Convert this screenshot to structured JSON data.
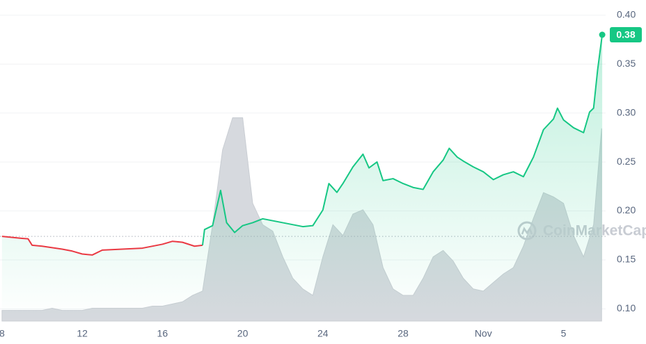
{
  "chart_data": {
    "type": "line",
    "watermark": "CoinMarketCap",
    "xlim": [
      -0.1,
      30.1
    ],
    "ylim": [
      0.0875,
      0.4155
    ],
    "xticks": [
      {
        "value": 0,
        "label": "8"
      },
      {
        "value": 4,
        "label": "12"
      },
      {
        "value": 8,
        "label": "16"
      },
      {
        "value": 12,
        "label": "20"
      },
      {
        "value": 16,
        "label": "24"
      },
      {
        "value": 20,
        "label": "28"
      },
      {
        "value": 24,
        "label": "Nov"
      },
      {
        "value": 28,
        "label": "5"
      }
    ],
    "yticks": [
      {
        "value": 0.4,
        "label": "0.40"
      },
      0.35,
      {
        "value": 0.3,
        "label": "0.30"
      },
      0.25,
      {
        "value": 0.2,
        "label": "0.20"
      },
      0.15,
      {
        "value": 0.1,
        "label": "0.10"
      }
    ],
    "grid": true,
    "y2lim": [
      0,
      150
    ],
    "series": [
      {
        "color": "#16c784",
        "down_color": "#ea3943",
        "x": [
          0,
          1,
          1.3,
          1.5,
          2,
          3,
          3.5,
          4,
          4.5,
          5,
          6,
          7,
          8,
          8.5,
          9,
          9.6,
          10,
          10.1,
          10.5,
          10.9,
          11.2,
          11.6,
          12,
          12.5,
          13,
          14,
          15,
          15.5,
          16,
          16.3,
          16.7,
          17,
          17.5,
          18,
          18.3,
          18.7,
          19,
          19.5,
          20,
          20.5,
          21,
          21.5,
          22,
          22.3,
          22.7,
          23,
          23.5,
          24,
          24.5,
          25,
          25.5,
          26,
          26.5,
          27,
          27.5,
          27.7,
          28,
          28.5,
          29,
          29.3,
          29.5,
          29.7,
          29.93
        ],
        "values": [
          0.174,
          0.172,
          0.1715,
          0.165,
          0.164,
          0.161,
          0.159,
          0.156,
          0.155,
          0.16,
          0.161,
          0.162,
          0.166,
          0.169,
          0.168,
          0.164,
          0.165,
          0.181,
          0.185,
          0.221,
          0.188,
          0.178,
          0.185,
          0.188,
          0.192,
          0.188,
          0.184,
          0.185,
          0.201,
          0.228,
          0.219,
          0.228,
          0.245,
          0.258,
          0.244,
          0.25,
          0.231,
          0.233,
          0.228,
          0.224,
          0.222,
          0.24,
          0.252,
          0.264,
          0.255,
          0.251,
          0.245,
          0.24,
          0.232,
          0.237,
          0.24,
          0.235,
          0.255,
          0.283,
          0.294,
          0.305,
          0.293,
          0.285,
          0.28,
          0.301,
          0.305,
          0.344,
          0.38
        ]
      },
      {
        "axis": "y2",
        "color": "#d6d9de",
        "x": [
          0,
          0.5,
          1,
          1.5,
          2,
          2.5,
          3,
          3.5,
          4,
          4.5,
          5,
          5.5,
          6,
          6.5,
          7,
          7.5,
          8,
          8.5,
          9,
          9.5,
          10,
          10.5,
          11,
          11.5,
          12,
          12.5,
          13,
          13.5,
          14,
          14.5,
          15,
          15.5,
          16,
          16.5,
          17,
          17.5,
          18,
          18.5,
          19,
          19.5,
          20,
          20.5,
          21,
          21.5,
          22,
          22.5,
          23,
          23.5,
          24,
          24.5,
          25,
          25.5,
          26,
          26.5,
          27,
          27.5,
          28,
          28.5,
          29,
          29.5,
          29.9
        ],
        "values": [
          5,
          5,
          5,
          5,
          5,
          6,
          5,
          5,
          5,
          6,
          6,
          6,
          6,
          6,
          6,
          7,
          7,
          8,
          9,
          12,
          14,
          45,
          80,
          95,
          95,
          55,
          45,
          42,
          30,
          20,
          15,
          12,
          30,
          45,
          40,
          50,
          52,
          45,
          25,
          15,
          12,
          12,
          20,
          30,
          33,
          28,
          20,
          15,
          14,
          18,
          22,
          25,
          35,
          48,
          60,
          58,
          55,
          40,
          30,
          45,
          90
        ]
      }
    ]
  }
}
